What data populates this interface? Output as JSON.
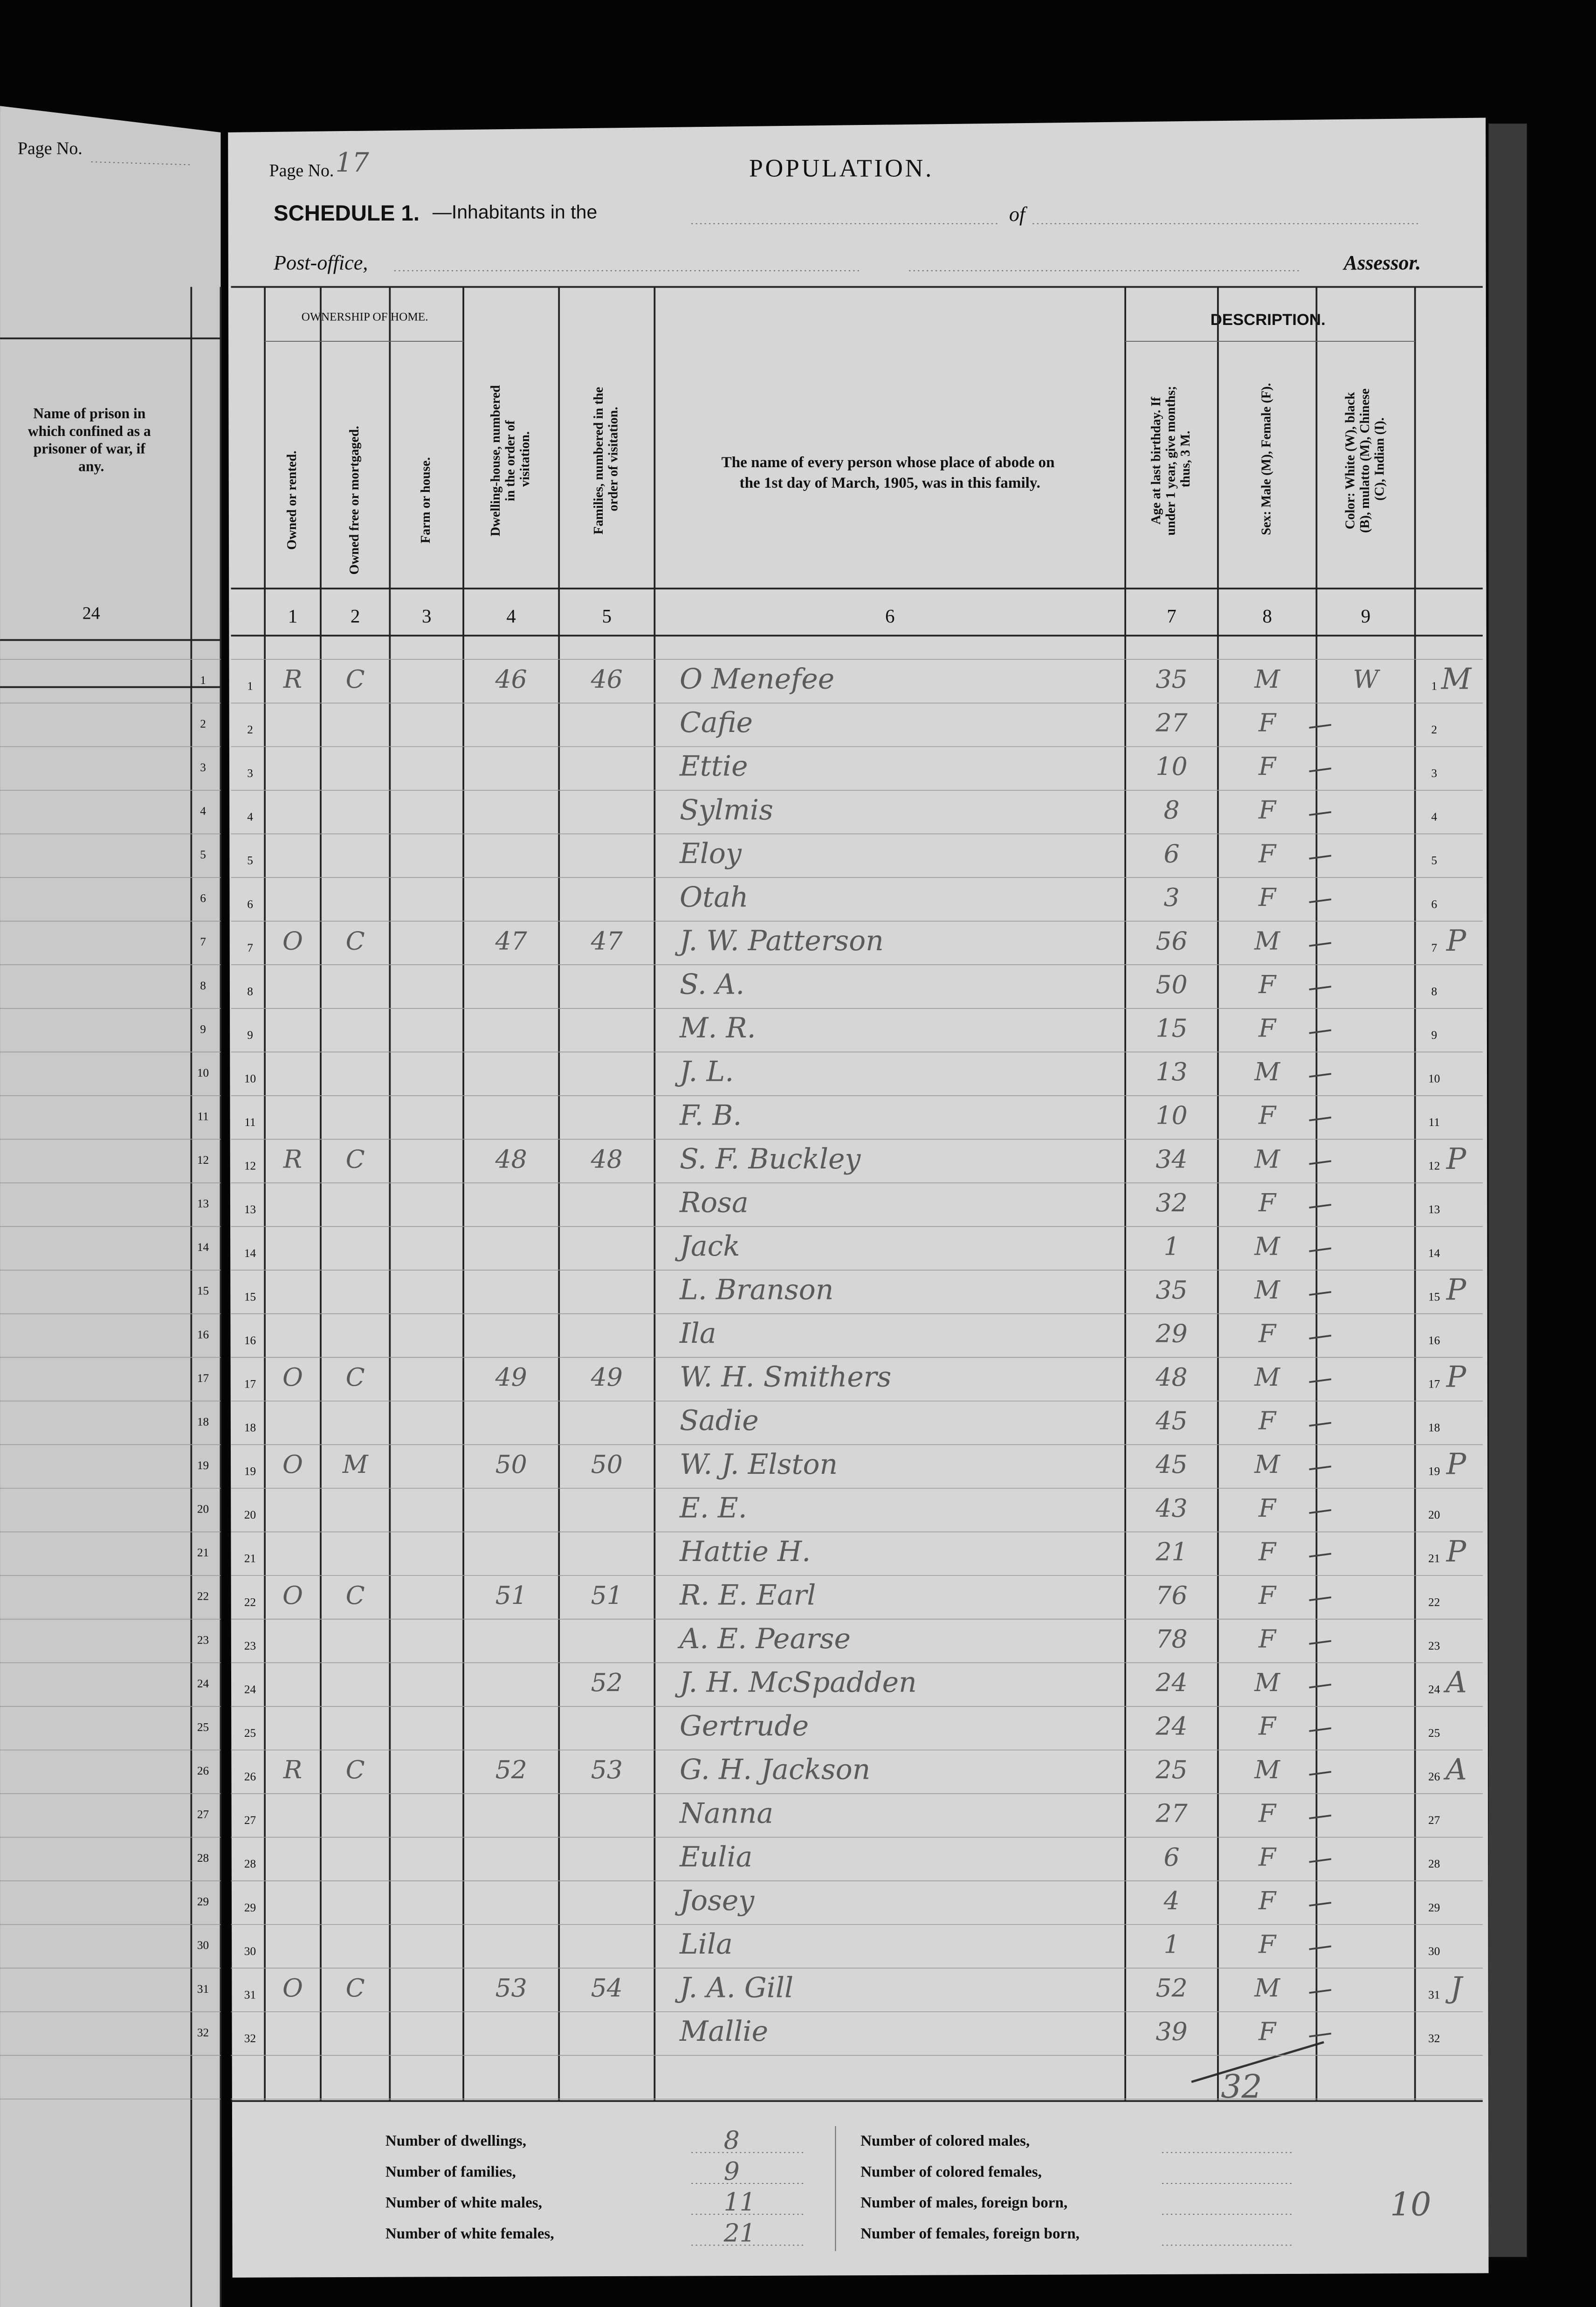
{
  "left_page": {
    "page_label": "Page No.",
    "prison_header": "Name of prison in which confined as a prisoner of war, if any.",
    "column_number": "24"
  },
  "header": {
    "page_label": "Page No.",
    "page_number": "17",
    "title": "POPULATION.",
    "schedule": "SCHEDULE 1.",
    "inhabitants": "—Inhabitants in the",
    "of": "of",
    "post_office": "Post-office,",
    "assessor": "Assessor."
  },
  "table": {
    "groups": {
      "ownership": "OWNERSHIP OF HOME.",
      "description": "DESCRIPTION."
    },
    "columns": [
      {
        "label": "Owned or rented.",
        "number": "1"
      },
      {
        "label": "Owned free or mortgaged.",
        "number": "2"
      },
      {
        "label": "Farm or house.",
        "number": "3"
      },
      {
        "label": "Dwelling-house, numbered in the order of visitation.",
        "number": "4"
      },
      {
        "label": "Families, numbered in the order of visitation.",
        "number": "5"
      },
      {
        "label": "The name of every person whose place of abode on the 1st day of March, 1905, was in this family.",
        "number": "6"
      },
      {
        "label": "Age at last birthday. If under 1 year, give months; thus, 3 M.",
        "number": "7"
      },
      {
        "label": "Sex: Male (M), Female (F).",
        "number": "8"
      },
      {
        "label": "Color: White (W), black (B), mulatto (M), Chinese (C), Indian (I).",
        "number": "9"
      }
    ],
    "rows": [
      {
        "line": "1",
        "owned": "R",
        "tenure": "C",
        "dwelling": "46",
        "family": "46",
        "name": "O Menefee",
        "age": "35",
        "sex": "M",
        "color": "W",
        "mark": "M"
      },
      {
        "line": "2",
        "name": "Cafie",
        "age": "27",
        "sex": "F"
      },
      {
        "line": "3",
        "name": "Ettie",
        "age": "10",
        "sex": "F"
      },
      {
        "line": "4",
        "name": "Sylmis",
        "age": "8",
        "sex": "F"
      },
      {
        "line": "5",
        "name": "Eloy",
        "age": "6",
        "sex": "F"
      },
      {
        "line": "6",
        "name": "Otah",
        "age": "3",
        "sex": "F"
      },
      {
        "line": "7",
        "owned": "O",
        "tenure": "C",
        "dwelling": "47",
        "family": "47",
        "name": "J. W. Patterson",
        "age": "56",
        "sex": "M",
        "mark": "P"
      },
      {
        "line": "8",
        "name": "S. A.",
        "age": "50",
        "sex": "F"
      },
      {
        "line": "9",
        "name": "M. R.",
        "age": "15",
        "sex": "F"
      },
      {
        "line": "10",
        "name": "J. L.",
        "age": "13",
        "sex": "M"
      },
      {
        "line": "11",
        "name": "F. B.",
        "age": "10",
        "sex": "F"
      },
      {
        "line": "12",
        "owned": "R",
        "tenure": "C",
        "dwelling": "48",
        "family": "48",
        "name": "S. F. Buckley",
        "age": "34",
        "sex": "M",
        "mark": "P"
      },
      {
        "line": "13",
        "name": "Rosa",
        "age": "32",
        "sex": "F"
      },
      {
        "line": "14",
        "name": "Jack",
        "age": "1",
        "sex": "M"
      },
      {
        "line": "15",
        "name": "L. Branson",
        "age": "35",
        "sex": "M",
        "mark": "P"
      },
      {
        "line": "16",
        "name": "Ila",
        "age": "29",
        "sex": "F"
      },
      {
        "line": "17",
        "owned": "O",
        "tenure": "C",
        "dwelling": "49",
        "family": "49",
        "name": "W. H. Smithers",
        "age": "48",
        "sex": "M",
        "mark": "P"
      },
      {
        "line": "18",
        "name": "Sadie",
        "age": "45",
        "sex": "F"
      },
      {
        "line": "19",
        "owned": "O",
        "tenure": "M",
        "dwelling": "50",
        "family": "50",
        "name": "W. J. Elston",
        "age": "45",
        "sex": "M",
        "mark": "P"
      },
      {
        "line": "20",
        "name": "E. E.",
        "age": "43",
        "sex": "F"
      },
      {
        "line": "21",
        "name": "Hattie H.",
        "age": "21",
        "sex": "F",
        "mark": "P"
      },
      {
        "line": "22",
        "owned": "O",
        "tenure": "C",
        "dwelling": "51",
        "family": "51",
        "name": "R. E. Earl",
        "age": "76",
        "sex": "F"
      },
      {
        "line": "23",
        "name": "A. E. Pearse",
        "age": "78",
        "sex": "F"
      },
      {
        "line": "24",
        "family": "52",
        "name": "J. H. McSpadden",
        "age": "24",
        "sex": "M",
        "mark": "A"
      },
      {
        "line": "25",
        "name": "Gertrude",
        "age": "24",
        "sex": "F"
      },
      {
        "line": "26",
        "owned": "R",
        "tenure": "C",
        "dwelling": "52",
        "family": "53",
        "name": "G. H. Jackson",
        "age": "25",
        "sex": "M",
        "mark": "A"
      },
      {
        "line": "27",
        "name": "Nanna",
        "age": "27",
        "sex": "F"
      },
      {
        "line": "28",
        "name": "Eulia",
        "age": "6",
        "sex": "F"
      },
      {
        "line": "29",
        "name": "Josey",
        "age": "4",
        "sex": "F"
      },
      {
        "line": "30",
        "name": "Lila",
        "age": "1",
        "sex": "F"
      },
      {
        "line": "31",
        "owned": "O",
        "tenure": "C",
        "dwelling": "53",
        "family": "54",
        "name": "J. A. Gill",
        "age": "52",
        "sex": "M",
        "mark": "J"
      },
      {
        "line": "32",
        "name": "Mallie",
        "age": "39",
        "sex": "F"
      }
    ],
    "total": "32"
  },
  "footer": {
    "left": [
      {
        "label": "Number of dwellings,",
        "value": "8"
      },
      {
        "label": "Number of families,",
        "value": "9"
      },
      {
        "label": "Number of white males,",
        "value": "11"
      },
      {
        "label": "Number of white females,",
        "value": "21"
      }
    ],
    "right": [
      {
        "label": "Number of colored males,"
      },
      {
        "label": "Number of colored females,"
      },
      {
        "label": "Number of males, foreign born,"
      },
      {
        "label": "Number of females, foreign born,"
      }
    ],
    "note": "10"
  }
}
